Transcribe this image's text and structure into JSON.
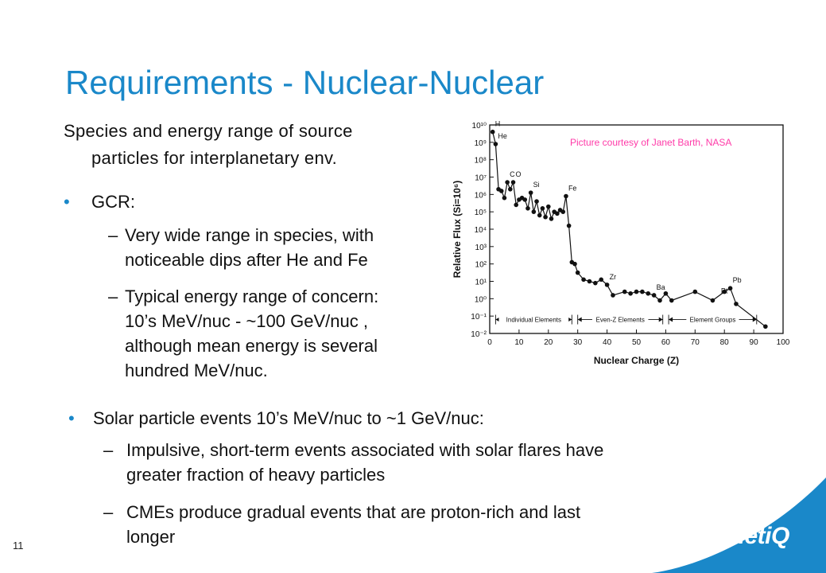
{
  "slide": {
    "title": "Requirements - Nuclear-Nuclear",
    "intro_line1": "Species and energy range of source",
    "intro_line2": "particles for interplanetary env.",
    "page_number": "11",
    "credit": "Picture courtesy of Janet Barth, NASA",
    "logo": "QinetiQ",
    "accent_color": "#1a88c9",
    "credit_color": "#ff3aa8"
  },
  "gcr": {
    "bullet": "•",
    "heading": "GCR:",
    "items": [
      {
        "dash": "–",
        "line1": "Very wide range in species, with",
        "line2": "noticeable dips after He and Fe"
      },
      {
        "dash": "–",
        "line1": "Typical energy range of concern:",
        "line2": "10’s MeV/nuc - ~100 GeV/nuc ,",
        "line3": "although mean energy is several",
        "line4": "hundred MeV/nuc."
      }
    ]
  },
  "solar": {
    "bullet": "•",
    "heading": "Solar particle events 10’s MeV/nuc to ~1 GeV/nuc:",
    "items": [
      {
        "dash": "–",
        "line1": "Impulsive, short-term events associated with solar flares have",
        "line2": "greater fraction of heavy particles"
      },
      {
        "dash": "–",
        "line1": "CMEs produce gradual events that are proton-rich and last",
        "line2": "longer"
      }
    ]
  },
  "chart_data": {
    "type": "line",
    "xlabel": "Nuclear Charge (Z)",
    "ylabel": "Relative Flux (Si=10⁶)",
    "xlim": [
      0,
      100
    ],
    "ylim_log10": [
      -2,
      10
    ],
    "x_ticks": [
      "0",
      "10",
      "20",
      "30",
      "40",
      "50",
      "60",
      "70",
      "80",
      "90",
      "100"
    ],
    "y_ticks": [
      "10⁻²",
      "10⁻¹",
      "10⁰",
      "10¹",
      "10²",
      "10³",
      "10⁴",
      "10⁵",
      "10⁶",
      "10⁷",
      "10⁸",
      "10⁹",
      "10¹⁰"
    ],
    "series": [
      {
        "x": [
          1,
          2,
          3,
          4,
          5,
          6,
          7,
          8,
          9,
          10,
          11,
          12,
          13,
          14,
          15,
          16,
          17,
          18,
          19,
          20,
          21,
          22,
          23,
          24,
          25,
          26,
          27,
          28,
          29,
          30,
          32,
          34,
          36,
          38,
          40,
          42,
          46,
          48,
          50,
          52,
          54,
          56,
          58,
          60,
          62,
          70,
          76,
          80,
          82,
          84,
          94
        ],
        "log10_flux": [
          9.6,
          8.9,
          6.3,
          6.2,
          5.8,
          6.7,
          6.3,
          6.7,
          5.4,
          5.7,
          5.8,
          5.7,
          5.2,
          6.1,
          5.0,
          5.6,
          4.8,
          5.2,
          4.7,
          5.3,
          4.6,
          5.0,
          4.9,
          5.1,
          5.0,
          5.9,
          4.2,
          2.1,
          2.0,
          1.5,
          1.1,
          1.0,
          0.9,
          1.1,
          0.8,
          0.2,
          0.4,
          0.3,
          0.4,
          0.4,
          0.3,
          0.2,
          -0.1,
          0.3,
          -0.1,
          0.4,
          -0.1,
          0.4,
          0.6,
          -0.3,
          -1.6
        ]
      }
    ],
    "point_labels": [
      {
        "x": 1,
        "text": "H"
      },
      {
        "x": 2,
        "text": "He"
      },
      {
        "x": 6,
        "text": "C"
      },
      {
        "x": 8,
        "text": "O"
      },
      {
        "x": 14,
        "text": "Si"
      },
      {
        "x": 26,
        "text": "Fe"
      },
      {
        "x": 40,
        "text": "Zr"
      },
      {
        "x": 56,
        "text": "Ba"
      },
      {
        "x": 78,
        "text": "Pt"
      },
      {
        "x": 82,
        "text": "Pb"
      }
    ],
    "region_labels": [
      {
        "text": "Individual Elements",
        "from": 2,
        "to": 28
      },
      {
        "text": "Even-Z Elements",
        "from": 30,
        "to": 59
      },
      {
        "text": "Element Groups",
        "from": 61,
        "to": 91
      }
    ]
  }
}
